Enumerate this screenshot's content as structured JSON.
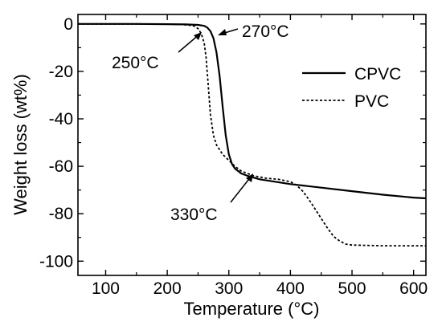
{
  "chart_data": {
    "type": "line",
    "xlabel": "Temperature (°C)",
    "ylabel": "Weight loss (wt%)",
    "xlim": [
      55,
      620
    ],
    "ylim": [
      -106,
      4
    ],
    "xticks": [
      100,
      200,
      300,
      400,
      500,
      600
    ],
    "xticks_minor": [
      50,
      150,
      250,
      350,
      450,
      550
    ],
    "yticks": [
      0,
      -20,
      -40,
      -60,
      -80,
      -100
    ],
    "yticks_minor": [
      -10,
      -30,
      -50,
      -70,
      -90
    ],
    "grid": false,
    "legend_position": "top-right",
    "series": [
      {
        "name": "CPVC",
        "style": "solid",
        "x": [
          55,
          100,
          150,
          200,
          230,
          250,
          260,
          265,
          270,
          275,
          280,
          285,
          290,
          295,
          300,
          305,
          310,
          320,
          330,
          350,
          400,
          450,
          500,
          550,
          600,
          620
        ],
        "y": [
          0,
          0,
          0,
          -0.1,
          -0.2,
          -0.4,
          -0.8,
          -1.5,
          -3,
          -6,
          -12,
          -22,
          -35,
          -47,
          -55,
          -59,
          -61,
          -63,
          -64,
          -65.5,
          -67.5,
          -69,
          -70.5,
          -72,
          -73.2,
          -73.5
        ]
      },
      {
        "name": "PVC",
        "style": "dashed",
        "x": [
          55,
          100,
          150,
          200,
          220,
          235,
          245,
          250,
          255,
          260,
          263,
          266,
          270,
          275,
          280,
          290,
          300,
          310,
          320,
          340,
          360,
          380,
          400,
          410,
          420,
          430,
          440,
          450,
          460,
          470,
          480,
          490,
          500,
          550,
          600,
          620
        ],
        "y": [
          0,
          0,
          0,
          -0.1,
          -0.2,
          -0.5,
          -1,
          -2,
          -4,
          -8,
          -14,
          -24,
          -38,
          -47,
          -51,
          -55,
          -57.5,
          -60,
          -62,
          -64,
          -65,
          -65.5,
          -66.5,
          -68,
          -70.5,
          -74,
          -78,
          -82,
          -86,
          -89.5,
          -91.5,
          -92.8,
          -93.2,
          -93.5,
          -93.5,
          -93.5
        ]
      }
    ],
    "annotations": [
      {
        "text": "270°C",
        "point": [
          270,
          -3
        ]
      },
      {
        "text": "250°C",
        "point": [
          250,
          -2
        ]
      },
      {
        "text": "330°C",
        "point": [
          330,
          -64
        ]
      }
    ]
  }
}
